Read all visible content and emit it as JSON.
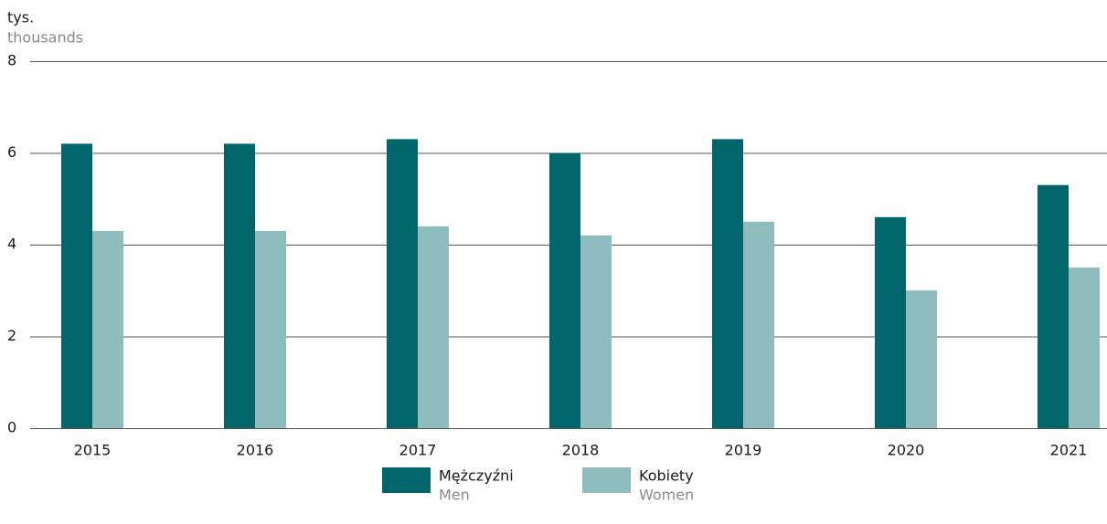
{
  "chart_data": {
    "type": "bar",
    "ylabel": "tys.",
    "ylabel_en": "thousands",
    "categories": [
      "2015",
      "2016",
      "2017",
      "2018",
      "2019",
      "2020",
      "2021"
    ],
    "series": [
      {
        "name": "Mężczyźni",
        "name_en": "Men",
        "color": "#00666b",
        "values": [
          6.2,
          6.2,
          6.3,
          6.0,
          6.3,
          4.6,
          5.3
        ]
      },
      {
        "name": "Kobiety",
        "name_en": "Women",
        "color": "#8fbcbd",
        "values": [
          4.3,
          4.3,
          4.4,
          4.2,
          4.5,
          3.0,
          3.5
        ]
      }
    ],
    "ylim": [
      0,
      8
    ],
    "yticks": [
      0,
      2,
      4,
      6,
      8
    ],
    "grid": true
  }
}
